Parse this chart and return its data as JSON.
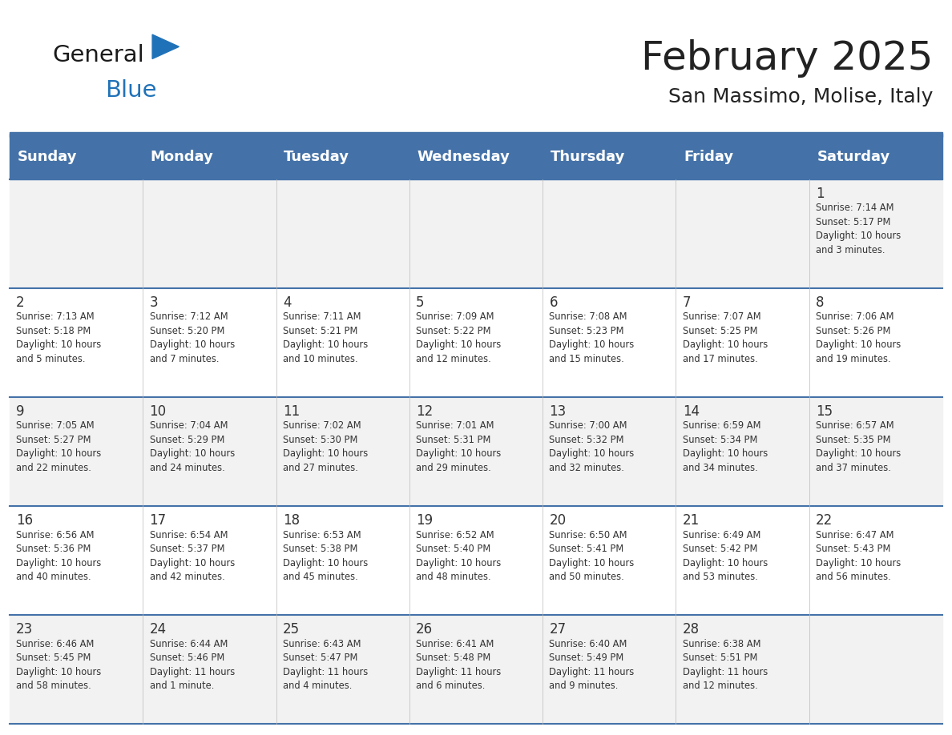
{
  "title": "February 2025",
  "subtitle": "San Massimo, Molise, Italy",
  "header_bg_color": "#4472A8",
  "header_text_color": "#FFFFFF",
  "row_bg_even": "#F2F2F2",
  "row_bg_odd": "#FFFFFF",
  "separator_color": "#4472A8",
  "day_headers": [
    "Sunday",
    "Monday",
    "Tuesday",
    "Wednesday",
    "Thursday",
    "Friday",
    "Saturday"
  ],
  "title_color": "#222222",
  "subtitle_color": "#222222",
  "cell_text_color": "#333333",
  "calendar": [
    [
      {
        "day": null,
        "info": ""
      },
      {
        "day": null,
        "info": ""
      },
      {
        "day": null,
        "info": ""
      },
      {
        "day": null,
        "info": ""
      },
      {
        "day": null,
        "info": ""
      },
      {
        "day": null,
        "info": ""
      },
      {
        "day": 1,
        "info": "Sunrise: 7:14 AM\nSunset: 5:17 PM\nDaylight: 10 hours\nand 3 minutes."
      }
    ],
    [
      {
        "day": 2,
        "info": "Sunrise: 7:13 AM\nSunset: 5:18 PM\nDaylight: 10 hours\nand 5 minutes."
      },
      {
        "day": 3,
        "info": "Sunrise: 7:12 AM\nSunset: 5:20 PM\nDaylight: 10 hours\nand 7 minutes."
      },
      {
        "day": 4,
        "info": "Sunrise: 7:11 AM\nSunset: 5:21 PM\nDaylight: 10 hours\nand 10 minutes."
      },
      {
        "day": 5,
        "info": "Sunrise: 7:09 AM\nSunset: 5:22 PM\nDaylight: 10 hours\nand 12 minutes."
      },
      {
        "day": 6,
        "info": "Sunrise: 7:08 AM\nSunset: 5:23 PM\nDaylight: 10 hours\nand 15 minutes."
      },
      {
        "day": 7,
        "info": "Sunrise: 7:07 AM\nSunset: 5:25 PM\nDaylight: 10 hours\nand 17 minutes."
      },
      {
        "day": 8,
        "info": "Sunrise: 7:06 AM\nSunset: 5:26 PM\nDaylight: 10 hours\nand 19 minutes."
      }
    ],
    [
      {
        "day": 9,
        "info": "Sunrise: 7:05 AM\nSunset: 5:27 PM\nDaylight: 10 hours\nand 22 minutes."
      },
      {
        "day": 10,
        "info": "Sunrise: 7:04 AM\nSunset: 5:29 PM\nDaylight: 10 hours\nand 24 minutes."
      },
      {
        "day": 11,
        "info": "Sunrise: 7:02 AM\nSunset: 5:30 PM\nDaylight: 10 hours\nand 27 minutes."
      },
      {
        "day": 12,
        "info": "Sunrise: 7:01 AM\nSunset: 5:31 PM\nDaylight: 10 hours\nand 29 minutes."
      },
      {
        "day": 13,
        "info": "Sunrise: 7:00 AM\nSunset: 5:32 PM\nDaylight: 10 hours\nand 32 minutes."
      },
      {
        "day": 14,
        "info": "Sunrise: 6:59 AM\nSunset: 5:34 PM\nDaylight: 10 hours\nand 34 minutes."
      },
      {
        "day": 15,
        "info": "Sunrise: 6:57 AM\nSunset: 5:35 PM\nDaylight: 10 hours\nand 37 minutes."
      }
    ],
    [
      {
        "day": 16,
        "info": "Sunrise: 6:56 AM\nSunset: 5:36 PM\nDaylight: 10 hours\nand 40 minutes."
      },
      {
        "day": 17,
        "info": "Sunrise: 6:54 AM\nSunset: 5:37 PM\nDaylight: 10 hours\nand 42 minutes."
      },
      {
        "day": 18,
        "info": "Sunrise: 6:53 AM\nSunset: 5:38 PM\nDaylight: 10 hours\nand 45 minutes."
      },
      {
        "day": 19,
        "info": "Sunrise: 6:52 AM\nSunset: 5:40 PM\nDaylight: 10 hours\nand 48 minutes."
      },
      {
        "day": 20,
        "info": "Sunrise: 6:50 AM\nSunset: 5:41 PM\nDaylight: 10 hours\nand 50 minutes."
      },
      {
        "day": 21,
        "info": "Sunrise: 6:49 AM\nSunset: 5:42 PM\nDaylight: 10 hours\nand 53 minutes."
      },
      {
        "day": 22,
        "info": "Sunrise: 6:47 AM\nSunset: 5:43 PM\nDaylight: 10 hours\nand 56 minutes."
      }
    ],
    [
      {
        "day": 23,
        "info": "Sunrise: 6:46 AM\nSunset: 5:45 PM\nDaylight: 10 hours\nand 58 minutes."
      },
      {
        "day": 24,
        "info": "Sunrise: 6:44 AM\nSunset: 5:46 PM\nDaylight: 11 hours\nand 1 minute."
      },
      {
        "day": 25,
        "info": "Sunrise: 6:43 AM\nSunset: 5:47 PM\nDaylight: 11 hours\nand 4 minutes."
      },
      {
        "day": 26,
        "info": "Sunrise: 6:41 AM\nSunset: 5:48 PM\nDaylight: 11 hours\nand 6 minutes."
      },
      {
        "day": 27,
        "info": "Sunrise: 6:40 AM\nSunset: 5:49 PM\nDaylight: 11 hours\nand 9 minutes."
      },
      {
        "day": 28,
        "info": "Sunrise: 6:38 AM\nSunset: 5:51 PM\nDaylight: 11 hours\nand 12 minutes."
      },
      {
        "day": null,
        "info": ""
      }
    ]
  ],
  "logo_text_general": "General",
  "logo_text_blue": "Blue",
  "logo_color_general": "#1a1a1a",
  "logo_color_blue": "#2072B8",
  "logo_triangle_color": "#2072B8"
}
